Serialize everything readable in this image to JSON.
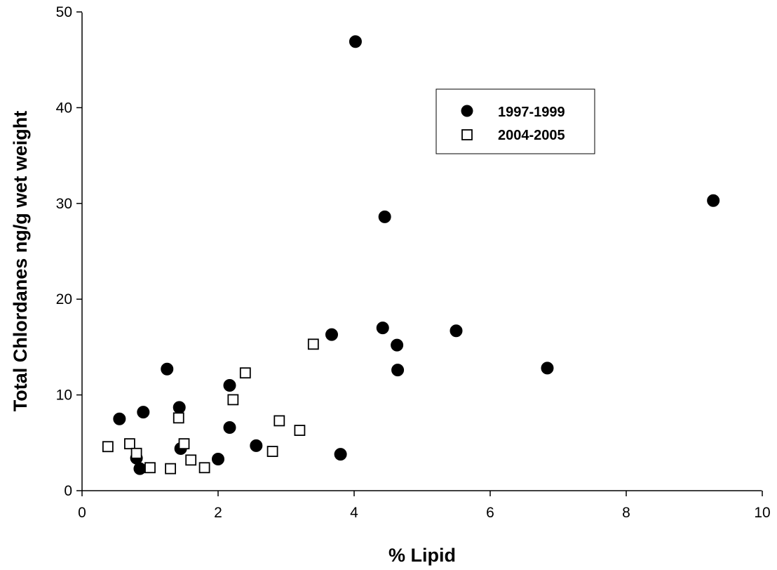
{
  "chart_data": {
    "type": "scatter",
    "title": "",
    "xlabel": "% Lipid",
    "ylabel": "Total Chlordanes ng/g wet weight",
    "xlim": [
      0,
      10
    ],
    "ylim": [
      0,
      50
    ],
    "x_ticks": [
      "0",
      "2",
      "4",
      "6",
      "8",
      "10"
    ],
    "y_ticks": [
      "0",
      "10",
      "20",
      "30",
      "40",
      "50"
    ],
    "grid": false,
    "legend_position": "top-center-right",
    "series": [
      {
        "name": "1997-1999",
        "marker": "filled-circle",
        "color": "#000000",
        "points": [
          [
            0.55,
            7.5
          ],
          [
            0.8,
            3.4
          ],
          [
            0.85,
            2.3
          ],
          [
            0.9,
            8.2
          ],
          [
            1.25,
            12.7
          ],
          [
            1.43,
            8.7
          ],
          [
            1.45,
            4.4
          ],
          [
            2.0,
            3.3
          ],
          [
            2.17,
            11.0
          ],
          [
            2.17,
            6.6
          ],
          [
            2.56,
            4.7
          ],
          [
            3.67,
            16.3
          ],
          [
            3.8,
            3.8
          ],
          [
            4.02,
            46.9
          ],
          [
            4.42,
            17.0
          ],
          [
            4.45,
            28.6
          ],
          [
            4.63,
            15.2
          ],
          [
            4.64,
            12.6
          ],
          [
            5.5,
            16.7
          ],
          [
            6.84,
            12.8
          ],
          [
            9.28,
            30.3
          ]
        ]
      },
      {
        "name": "2004-2005",
        "marker": "open-square",
        "color": "#000000",
        "points": [
          [
            0.38,
            4.6
          ],
          [
            0.7,
            4.9
          ],
          [
            0.8,
            3.9
          ],
          [
            1.0,
            2.4
          ],
          [
            1.3,
            2.3
          ],
          [
            1.42,
            7.6
          ],
          [
            1.5,
            4.9
          ],
          [
            1.6,
            3.2
          ],
          [
            1.8,
            2.4
          ],
          [
            2.22,
            9.5
          ],
          [
            2.4,
            12.3
          ],
          [
            2.8,
            4.1
          ],
          [
            2.9,
            7.3
          ],
          [
            3.2,
            6.3
          ],
          [
            3.4,
            15.3
          ]
        ]
      }
    ]
  }
}
